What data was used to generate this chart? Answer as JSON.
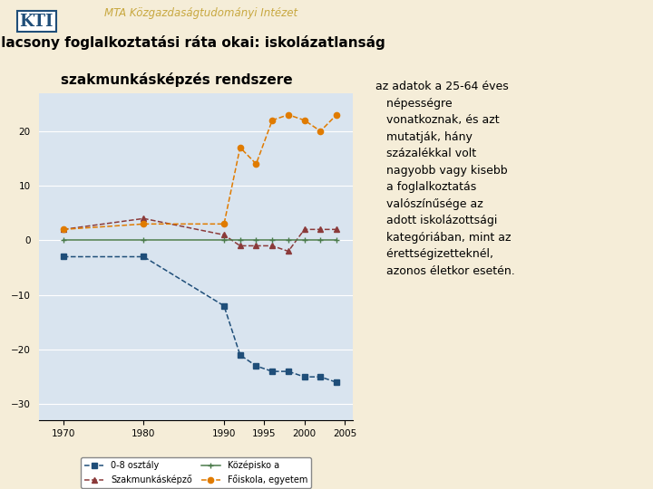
{
  "title_line1": "Az alacsony foglalkoztatási ráta okai: iskolázatlanság",
  "title_line2": "szakmunkásképzés rendszere",
  "header": "MTA Közgazdaságtudományi Intézet",
  "annotation_lines": [
    "az adatok a 25-64 éves",
    "   népességre",
    "   vonatkoznak, és azt",
    "   mutatják, hány",
    "   százalékkal volt",
    "   nagyobb vagy kisebb",
    "   a foglalkoztatás",
    "   valószínűsége az",
    "   adott iskolázottsági",
    "   kategóriában, mint az",
    "   érettségizetteknél,",
    "   azonos életkor esetén."
  ],
  "series": {
    "0-8 osztály": {
      "color": "#1f4e79",
      "marker": "s",
      "linestyle": "--",
      "data_x": [
        1970,
        1980,
        1990,
        1992,
        1994,
        1996,
        1998,
        2000,
        2002,
        2004
      ],
      "data_y": [
        -3,
        -3,
        -12,
        -21,
        -23,
        -24,
        -24,
        -25,
        -25,
        -26
      ]
    },
    "Szakmunkásképző": {
      "color": "#8b3a3a",
      "marker": "^",
      "linestyle": "--",
      "data_x": [
        1970,
        1980,
        1990,
        1992,
        1994,
        1996,
        1998,
        2000,
        2002,
        2004
      ],
      "data_y": [
        2,
        4,
        1,
        -1,
        -1,
        -1,
        -2,
        2,
        2,
        2
      ]
    },
    "Középisko a": {
      "color": "#4a7a4a",
      "marker": "+",
      "linestyle": "-",
      "data_x": [
        1970,
        1980,
        1990,
        1992,
        1994,
        1996,
        1998,
        2000,
        2002,
        2004
      ],
      "data_y": [
        0,
        0,
        0,
        0,
        0,
        0,
        0,
        0,
        0,
        0
      ]
    },
    "Főiskola, egyetem": {
      "color": "#e07b00",
      "marker": "o",
      "linestyle": "--",
      "data_x": [
        1970,
        1980,
        1990,
        1992,
        1994,
        1996,
        1998,
        2000,
        2002,
        2004
      ],
      "data_y": [
        2,
        3,
        3,
        17,
        14,
        22,
        23,
        22,
        20,
        23
      ]
    }
  },
  "legend_labels": [
    "0-8 osztály",
    "Szakmunkásképző",
    "Középisko a",
    "Főiskola, egyetem"
  ],
  "xlim": [
    1967,
    2006
  ],
  "ylim": [
    -33,
    27
  ],
  "yticks": [
    -30,
    -20,
    -10,
    0,
    10,
    20
  ],
  "xticks": [
    1970,
    1980,
    1990,
    1995,
    2000,
    2005
  ],
  "plot_bg": "#d9e4ef",
  "outer_bg": "#f5edd8",
  "header_color": "#c8a840",
  "title_color": "#000000",
  "kti_color": "#1f4e79"
}
